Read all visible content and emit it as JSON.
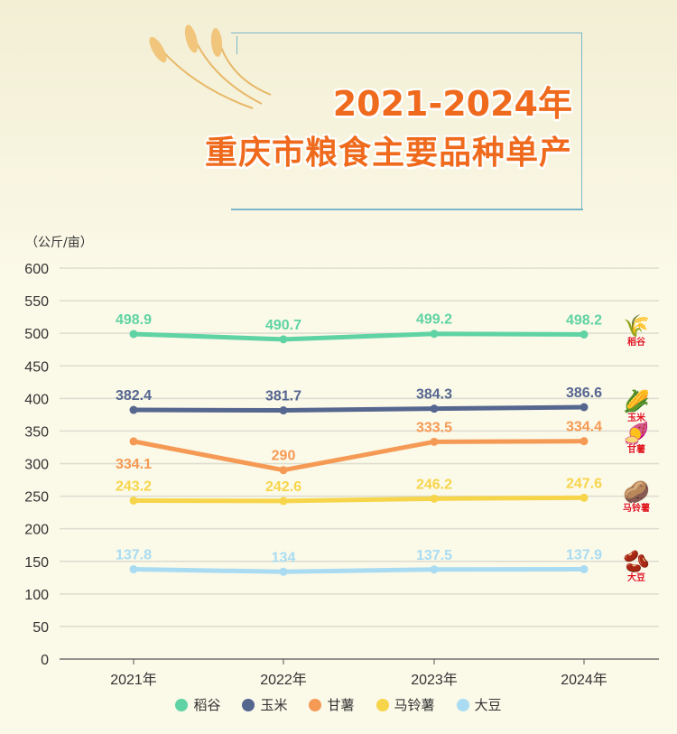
{
  "title": {
    "line1": "2021-2024年",
    "line2": "重庆市粮食主要品种单产"
  },
  "unit": "（公斤/亩）",
  "chart_data": {
    "type": "line",
    "title": "2021-2024年 重庆市粮食主要品种单产",
    "ylabel": "（公斤/亩）",
    "xlabel": "",
    "categories": [
      "2021年",
      "2022年",
      "2023年",
      "2024年"
    ],
    "ylim": [
      0,
      600
    ],
    "yticks": [
      0,
      50,
      100,
      150,
      200,
      250,
      300,
      350,
      400,
      450,
      500,
      550,
      600
    ],
    "grid": true,
    "legend_position": "bottom",
    "series": [
      {
        "name": "稻谷",
        "color": "#5fd3a4",
        "values": [
          498.9,
          490.7,
          499.2,
          498.2
        ],
        "labels": [
          "498.9",
          "490.7",
          "499.2",
          "498.2"
        ],
        "label_pos": [
          "above",
          "above",
          "above",
          "above"
        ]
      },
      {
        "name": "玉米",
        "color": "#55668f",
        "values": [
          382.4,
          381.7,
          384.3,
          386.6
        ],
        "labels": [
          "382.4",
          "381.7",
          "384.3",
          "386.6"
        ],
        "label_pos": [
          "above",
          "above",
          "above",
          "above"
        ]
      },
      {
        "name": "甘薯",
        "color": "#f59a55",
        "values": [
          334.1,
          290,
          333.5,
          334.4
        ],
        "labels": [
          "334.1",
          "290",
          "333.5",
          "334.4"
        ],
        "label_pos": [
          "below",
          "above",
          "above",
          "above"
        ]
      },
      {
        "name": "马铃薯",
        "color": "#f7d54a",
        "values": [
          243.2,
          242.6,
          246.2,
          247.6
        ],
        "labels": [
          "243.2",
          "242.6",
          "246.2",
          "247.6"
        ],
        "label_pos": [
          "above",
          "above",
          "above",
          "above"
        ]
      },
      {
        "name": "大豆",
        "color": "#a9dcf2",
        "values": [
          137.8,
          134,
          137.5,
          137.9
        ],
        "labels": [
          "137.8",
          "134",
          "137.5",
          "137.9"
        ],
        "label_pos": [
          "above",
          "above",
          "above",
          "above"
        ]
      }
    ]
  },
  "crop_icons": [
    {
      "label": "稻谷",
      "icon": "rice-sheaf-icon",
      "glyph": "🌾"
    },
    {
      "label": "玉米",
      "icon": "corn-icon",
      "glyph": "🌽"
    },
    {
      "label": "甘薯",
      "icon": "sweet-potato-icon",
      "glyph": "🍠"
    },
    {
      "label": "马铃薯",
      "icon": "potato-icon",
      "glyph": "🥔"
    },
    {
      "label": "大豆",
      "icon": "soybean-icon",
      "glyph": "🫘"
    }
  ]
}
